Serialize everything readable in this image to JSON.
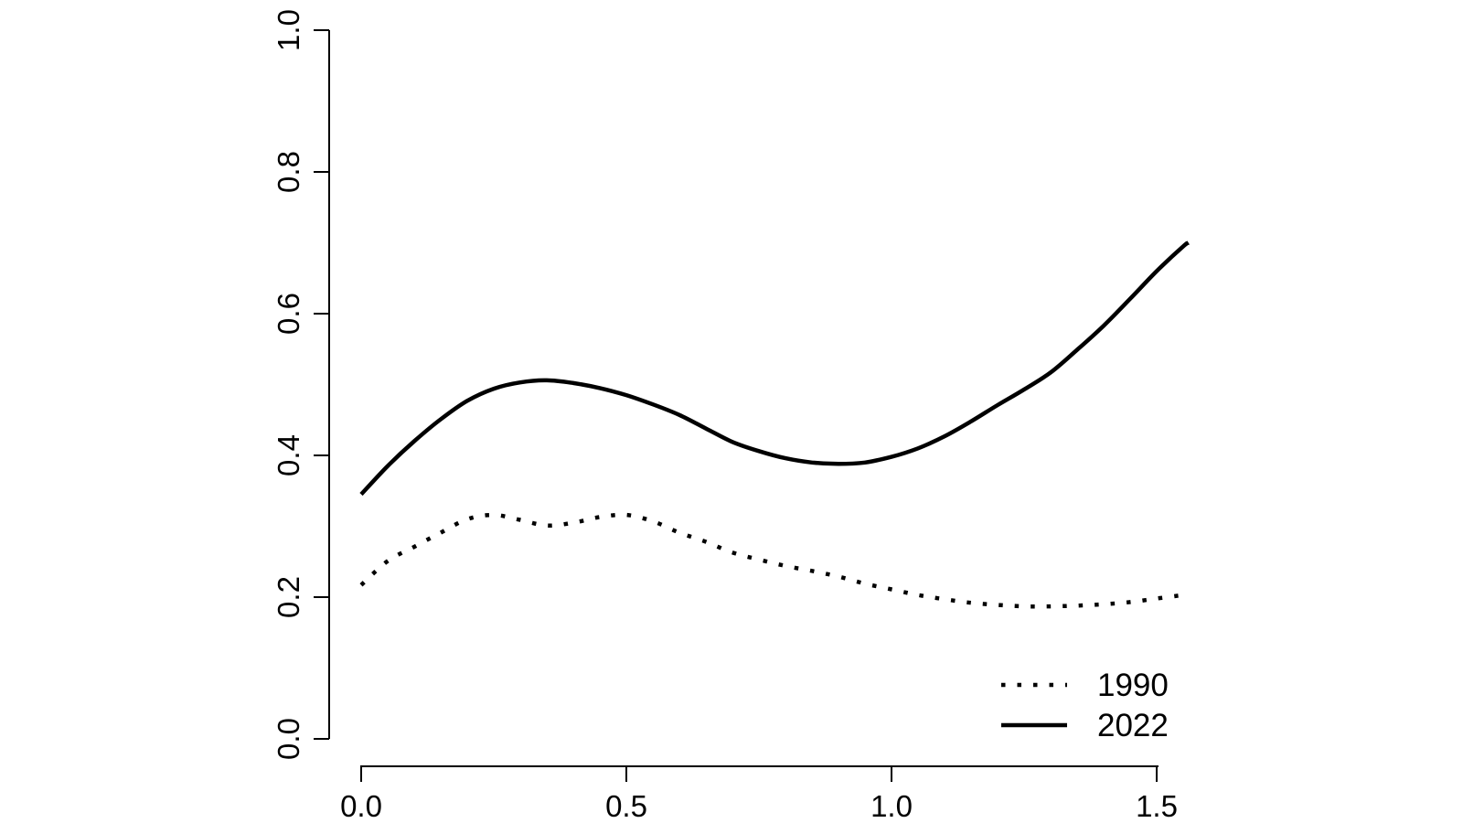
{
  "figure": {
    "background_color": "#ffffff",
    "ink_color": "#000000",
    "title": "",
    "xlabel": "",
    "ylabel": ""
  },
  "chart_data": {
    "type": "line",
    "title": "",
    "xlabel": "",
    "ylabel": "",
    "xlim": [
      0,
      1.56
    ],
    "ylim": [
      0.0,
      1.0
    ],
    "grid": false,
    "x_ticks": {
      "values": [
        0.0,
        0.5,
        1.0,
        1.5
      ],
      "labels": [
        "0.0",
        "0.5",
        "1.0",
        "1.5"
      ]
    },
    "y_ticks": {
      "values": [
        0.0,
        0.2,
        0.4,
        0.6,
        0.8,
        1.0
      ],
      "labels": [
        "0.0",
        "0.2",
        "0.4",
        "0.6",
        "0.8",
        "1.0"
      ]
    },
    "x": [
      0.0,
      0.05,
      0.1,
      0.15,
      0.2,
      0.25,
      0.3,
      0.35,
      0.4,
      0.45,
      0.5,
      0.55,
      0.6,
      0.65,
      0.7,
      0.75,
      0.8,
      0.85,
      0.9,
      0.95,
      1.0,
      1.05,
      1.1,
      1.15,
      1.2,
      1.25,
      1.3,
      1.35,
      1.4,
      1.45,
      1.5,
      1.55,
      1.56
    ],
    "series": [
      {
        "name": "1990",
        "line_style": "dotted",
        "color": "#000000",
        "values": [
          0.217,
          0.251,
          0.271,
          0.291,
          0.31,
          0.316,
          0.309,
          0.301,
          0.305,
          0.313,
          0.316,
          0.307,
          0.291,
          0.278,
          0.263,
          0.253,
          0.244,
          0.237,
          0.229,
          0.219,
          0.211,
          0.203,
          0.197,
          0.192,
          0.189,
          0.187,
          0.187,
          0.188,
          0.19,
          0.193,
          0.198,
          0.203,
          0.204
        ]
      },
      {
        "name": "2022",
        "line_style": "solid",
        "color": "#000000",
        "values": [
          0.345,
          0.385,
          0.42,
          0.451,
          0.477,
          0.494,
          0.503,
          0.506,
          0.502,
          0.495,
          0.485,
          0.472,
          0.457,
          0.438,
          0.419,
          0.406,
          0.396,
          0.39,
          0.388,
          0.39,
          0.398,
          0.41,
          0.427,
          0.448,
          0.471,
          0.493,
          0.517,
          0.549,
          0.583,
          0.621,
          0.66,
          0.695,
          0.7
        ]
      }
    ],
    "legend": {
      "position": "bottom-right",
      "has_box": false,
      "entries": [
        {
          "label": "1990",
          "line_style": "dotted"
        },
        {
          "label": "2022",
          "line_style": "solid"
        }
      ]
    }
  }
}
